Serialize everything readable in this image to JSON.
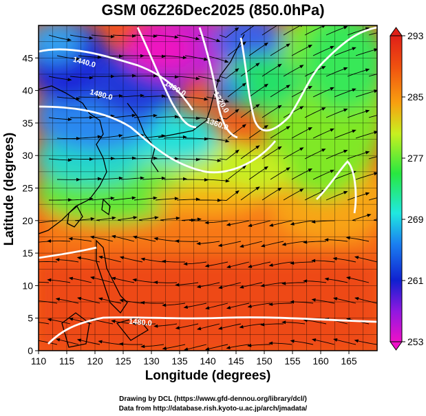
{
  "title": "GSM 06Z26Dec2025 (850.0hPa)",
  "xlabel": "Longitude (degrees)",
  "ylabel": "Latitude  (degrees)",
  "credits": [
    "Drawing by DCL (https://www.gfd-dennou.org/library/dcl/)",
    "Data from http://database.rish.kyoto-u.ac.jp/arch/jmadata/"
  ],
  "chart_data": {
    "type": "heatmap",
    "xlim": [
      110,
      170
    ],
    "ylim": [
      0,
      50
    ],
    "x_ticks": [
      110,
      115,
      120,
      125,
      130,
      135,
      140,
      145,
      150,
      155,
      160,
      165
    ],
    "y_ticks": [
      0,
      5,
      10,
      15,
      20,
      25,
      30,
      35,
      40,
      45
    ],
    "grid": true,
    "colorbar": {
      "min": 253,
      "max": 293,
      "ticks": [
        253,
        261,
        269,
        277,
        285,
        293
      ],
      "colors": [
        "#ee10c8",
        "#9018e0",
        "#1020d0",
        "#1a80f0",
        "#20e8e0",
        "#28e840",
        "#c8f020",
        "#f8a010",
        "#f05010",
        "#e02018"
      ]
    },
    "contour_labels": [
      {
        "text": "1440.0",
        "lon": 118,
        "lat": 44,
        "angle": 15
      },
      {
        "text": "1480.0",
        "lon": 121,
        "lat": 39,
        "angle": 15
      },
      {
        "text": "1400.0",
        "lon": 134,
        "lat": 40,
        "angle": 30
      },
      {
        "text": "1320.0",
        "lon": 142,
        "lat": 38,
        "angle": 60
      },
      {
        "text": "1360.0",
        "lon": 141.5,
        "lat": 34.5,
        "angle": 20
      },
      {
        "text": "1480.0",
        "lon": 128,
        "lat": 4,
        "angle": 5
      }
    ]
  }
}
